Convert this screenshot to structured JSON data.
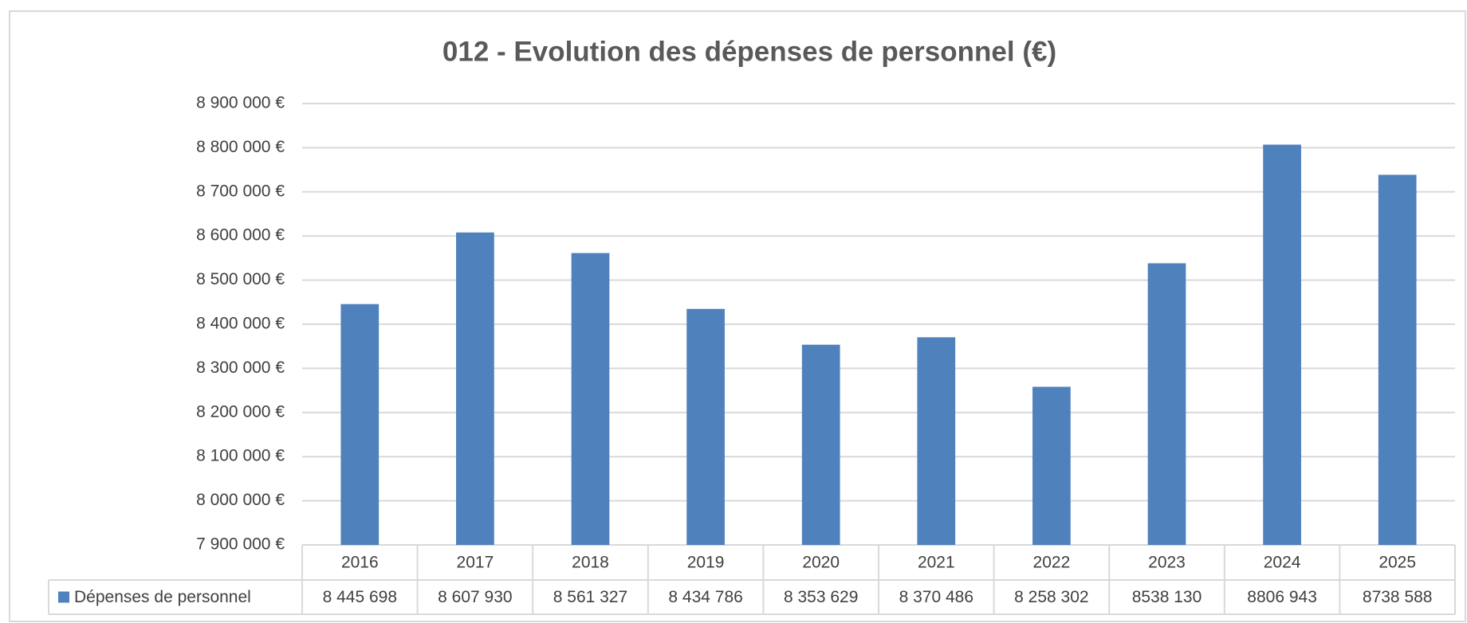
{
  "chart_data": {
    "type": "bar",
    "title": "012 - Evolution des dépenses de personnel (€)",
    "categories": [
      "2016",
      "2017",
      "2018",
      "2019",
      "2020",
      "2021",
      "2022",
      "2023",
      "2024",
      "2025"
    ],
    "series": [
      {
        "name": "Dépenses de personnel",
        "color": "#4f81bd",
        "values": [
          8445698,
          8607930,
          8561327,
          8434786,
          8353629,
          8370486,
          8258302,
          8538130,
          8806943,
          8738588
        ],
        "value_labels": [
          "8 445 698",
          "8 607 930",
          "8 561 327",
          "8 434 786",
          "8 353 629",
          "8 370 486",
          "8 258 302",
          "8538 130",
          "8806 943",
          "8738 588"
        ]
      }
    ],
    "ylim": [
      7900000,
      8900000
    ],
    "yticks": [
      {
        "value": 7900000,
        "label": "7 900 000 €"
      },
      {
        "value": 8000000,
        "label": "8 000 000 €"
      },
      {
        "value": 8100000,
        "label": "8 100 000 €"
      },
      {
        "value": 8200000,
        "label": "8 200 000 €"
      },
      {
        "value": 8300000,
        "label": "8 300 000 €"
      },
      {
        "value": 8400000,
        "label": "8 400 000 €"
      },
      {
        "value": 8500000,
        "label": "8 500 000 €"
      },
      {
        "value": 8600000,
        "label": "8 600 000 €"
      },
      {
        "value": 8700000,
        "label": "8 700 000 €"
      },
      {
        "value": 8800000,
        "label": "8 800 000 €"
      },
      {
        "value": 8900000,
        "label": "8 900 000 €"
      }
    ],
    "grid": true,
    "legend": "table"
  }
}
